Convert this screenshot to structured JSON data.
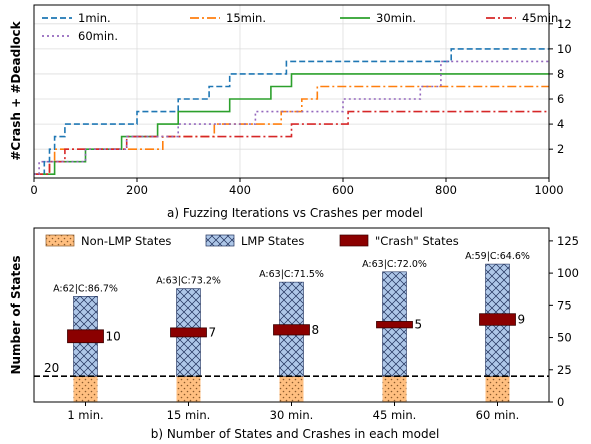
{
  "chart_data": [
    {
      "type": "line",
      "step": true,
      "caption": "a) Fuzzing Iterations vs Crashes per model",
      "xlabel": "",
      "ylabel": "#Crash + #Deadlock",
      "xlim": [
        0,
        1000
      ],
      "ylim": [
        -0.3,
        13.5
      ],
      "xticks": [
        0,
        200,
        400,
        600,
        800,
        1000
      ],
      "yticks": [
        2,
        4,
        6,
        8,
        10,
        12
      ],
      "y_axis_side": "right",
      "grid": true,
      "legend_position": "top-left",
      "series": [
        {
          "name": "1min.",
          "color": "#1f77b4",
          "dash": "6,3",
          "x": [
            0,
            20,
            30,
            40,
            60,
            90,
            130,
            180,
            200,
            240,
            280,
            300,
            340,
            380,
            430,
            490,
            810,
            1000
          ],
          "y": [
            0,
            1,
            2,
            3,
            4,
            4,
            4,
            4,
            5,
            5,
            6,
            6,
            7,
            8,
            8,
            9,
            10,
            10
          ]
        },
        {
          "name": "15min.",
          "color": "#ff7f0e",
          "dash": "9,3,2,3",
          "x": [
            0,
            30,
            40,
            100,
            150,
            250,
            350,
            420,
            480,
            520,
            550,
            1000
          ],
          "y": [
            0,
            1,
            2,
            2,
            2,
            3,
            4,
            4,
            5,
            6,
            7,
            7
          ]
        },
        {
          "name": "30min.",
          "color": "#2ca02c",
          "dash": "",
          "x": [
            0,
            40,
            60,
            100,
            170,
            240,
            280,
            330,
            380,
            460,
            500,
            1000
          ],
          "y": [
            0,
            1,
            1,
            2,
            3,
            4,
            5,
            5,
            6,
            7,
            8,
            8
          ]
        },
        {
          "name": "45min.",
          "color": "#d62728",
          "dash": "9,3,2,3",
          "x": [
            0,
            10,
            30,
            60,
            100,
            180,
            250,
            400,
            500,
            610,
            1000
          ],
          "y": [
            0,
            0,
            1,
            2,
            2,
            3,
            3,
            3,
            4,
            5,
            5
          ]
        },
        {
          "name": "60min.",
          "color": "#9467bd",
          "dash": "2,3",
          "x": [
            0,
            10,
            60,
            100,
            180,
            280,
            300,
            430,
            470,
            540,
            580,
            600,
            750,
            790,
            1000
          ],
          "y": [
            0,
            1,
            1,
            2,
            3,
            4,
            4,
            5,
            5,
            5,
            5,
            6,
            7,
            9,
            9
          ]
        }
      ]
    },
    {
      "type": "bar",
      "caption": "b) Number of States and Crashes in each model",
      "xlabel": "",
      "ylabel": "Number of States",
      "ylim": [
        0,
        135
      ],
      "yticks": [
        0,
        25,
        50,
        75,
        100,
        125
      ],
      "y_axis_side": "right",
      "categories": [
        "1 min.",
        "15 min.",
        "30 min.",
        "45 min.",
        "60 min."
      ],
      "series": [
        {
          "name": "Non-LMP States",
          "color": "#ffbf80",
          "hatch": "dots",
          "values": [
            20,
            20,
            20,
            20,
            20
          ]
        },
        {
          "name": "LMP States",
          "color": "#aec7e8",
          "hatch": "cross",
          "values": [
            62,
            68,
            73,
            81,
            87
          ]
        },
        {
          "name": "\"Crash\" States",
          "color": "#8b0000",
          "values": [
            10,
            7,
            8,
            5,
            9
          ]
        }
      ],
      "crash_marker_center": [
        51,
        54,
        56,
        60,
        64
      ],
      "bar_labels": [
        "A:62|C:86.7%",
        "A:63|C:73.2%",
        "A:63|C:71.5%",
        "A:63|C:72.0%",
        "A:59|C:64.6%"
      ],
      "crash_labels": [
        "10",
        "7",
        "8",
        "5",
        "9"
      ],
      "reference_line": {
        "value": 20,
        "label": "20"
      },
      "legend_position": "top"
    }
  ]
}
